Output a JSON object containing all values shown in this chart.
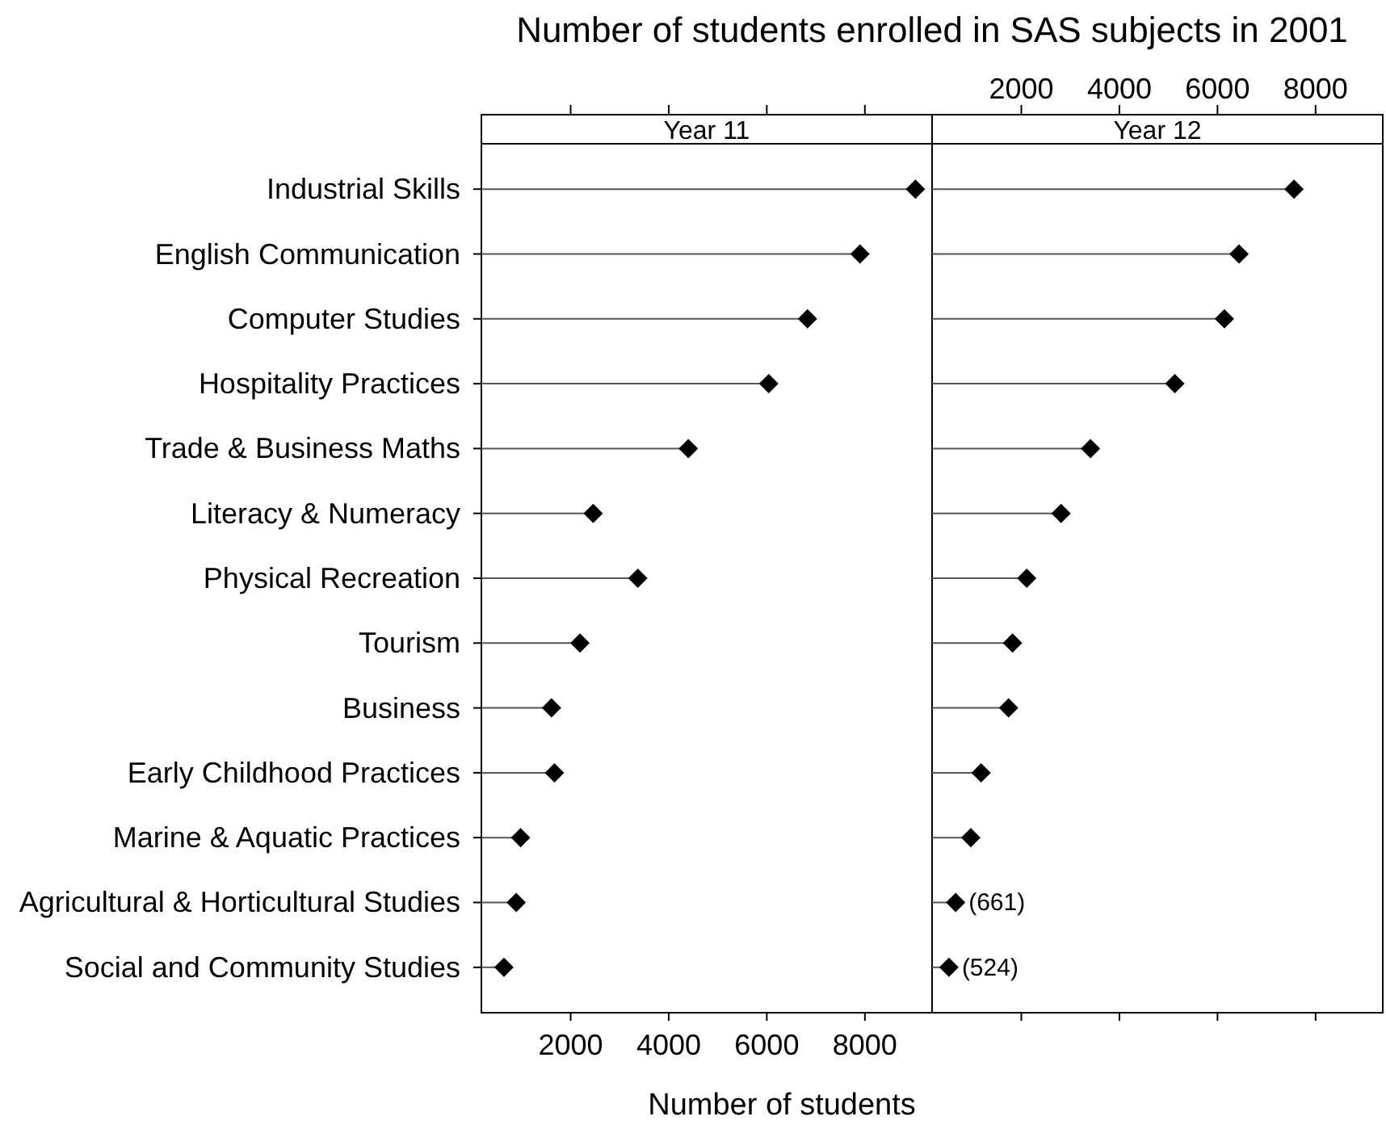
{
  "chart_data": [
    {
      "type": "lollipop",
      "orientation": "horizontal",
      "title": "Number of students enrolled in SAS subjects in 2001",
      "subtitle": "Year 11",
      "xlabel": "Number of students",
      "categories": [
        "Industrial Skills",
        "English Communication",
        "Computer Studies",
        "Hospitality Practices",
        "Trade & Business Maths",
        "Literacy & Numeracy",
        "Physical Recreation",
        "Tourism",
        "Business",
        "Early Childhood Practices",
        "Marine & Aquatic Practices",
        "Agricultural & Horticultural Studies",
        "Social and Community Studies"
      ],
      "values": [
        9030,
        7900,
        6830,
        6040,
        4400,
        2460,
        3370,
        2190,
        1610,
        1670,
        980,
        890,
        640
      ],
      "color": "#000000",
      "marker": "diamond",
      "xlim": [
        180,
        9370
      ],
      "xticks": [
        2000,
        4000,
        6000,
        8000
      ]
    },
    {
      "type": "lollipop",
      "orientation": "horizontal",
      "subtitle": "Year 12",
      "categories": [
        null,
        null,
        null,
        null,
        null,
        null,
        null,
        null,
        null,
        null,
        null,
        null,
        null
      ],
      "values": [
        7560,
        6440,
        6140,
        5130,
        3410,
        2810,
        2110,
        1820,
        1740,
        1180,
        970,
        661,
        524
      ],
      "color": "#000000",
      "marker": "diamond",
      "value_labels": [
        null,
        null,
        null,
        null,
        null,
        null,
        null,
        null,
        null,
        null,
        null,
        "(661)",
        "(524)"
      ],
      "xlim": [
        180,
        9370
      ],
      "xticks": [
        2000,
        4000,
        6000,
        8000
      ]
    }
  ]
}
